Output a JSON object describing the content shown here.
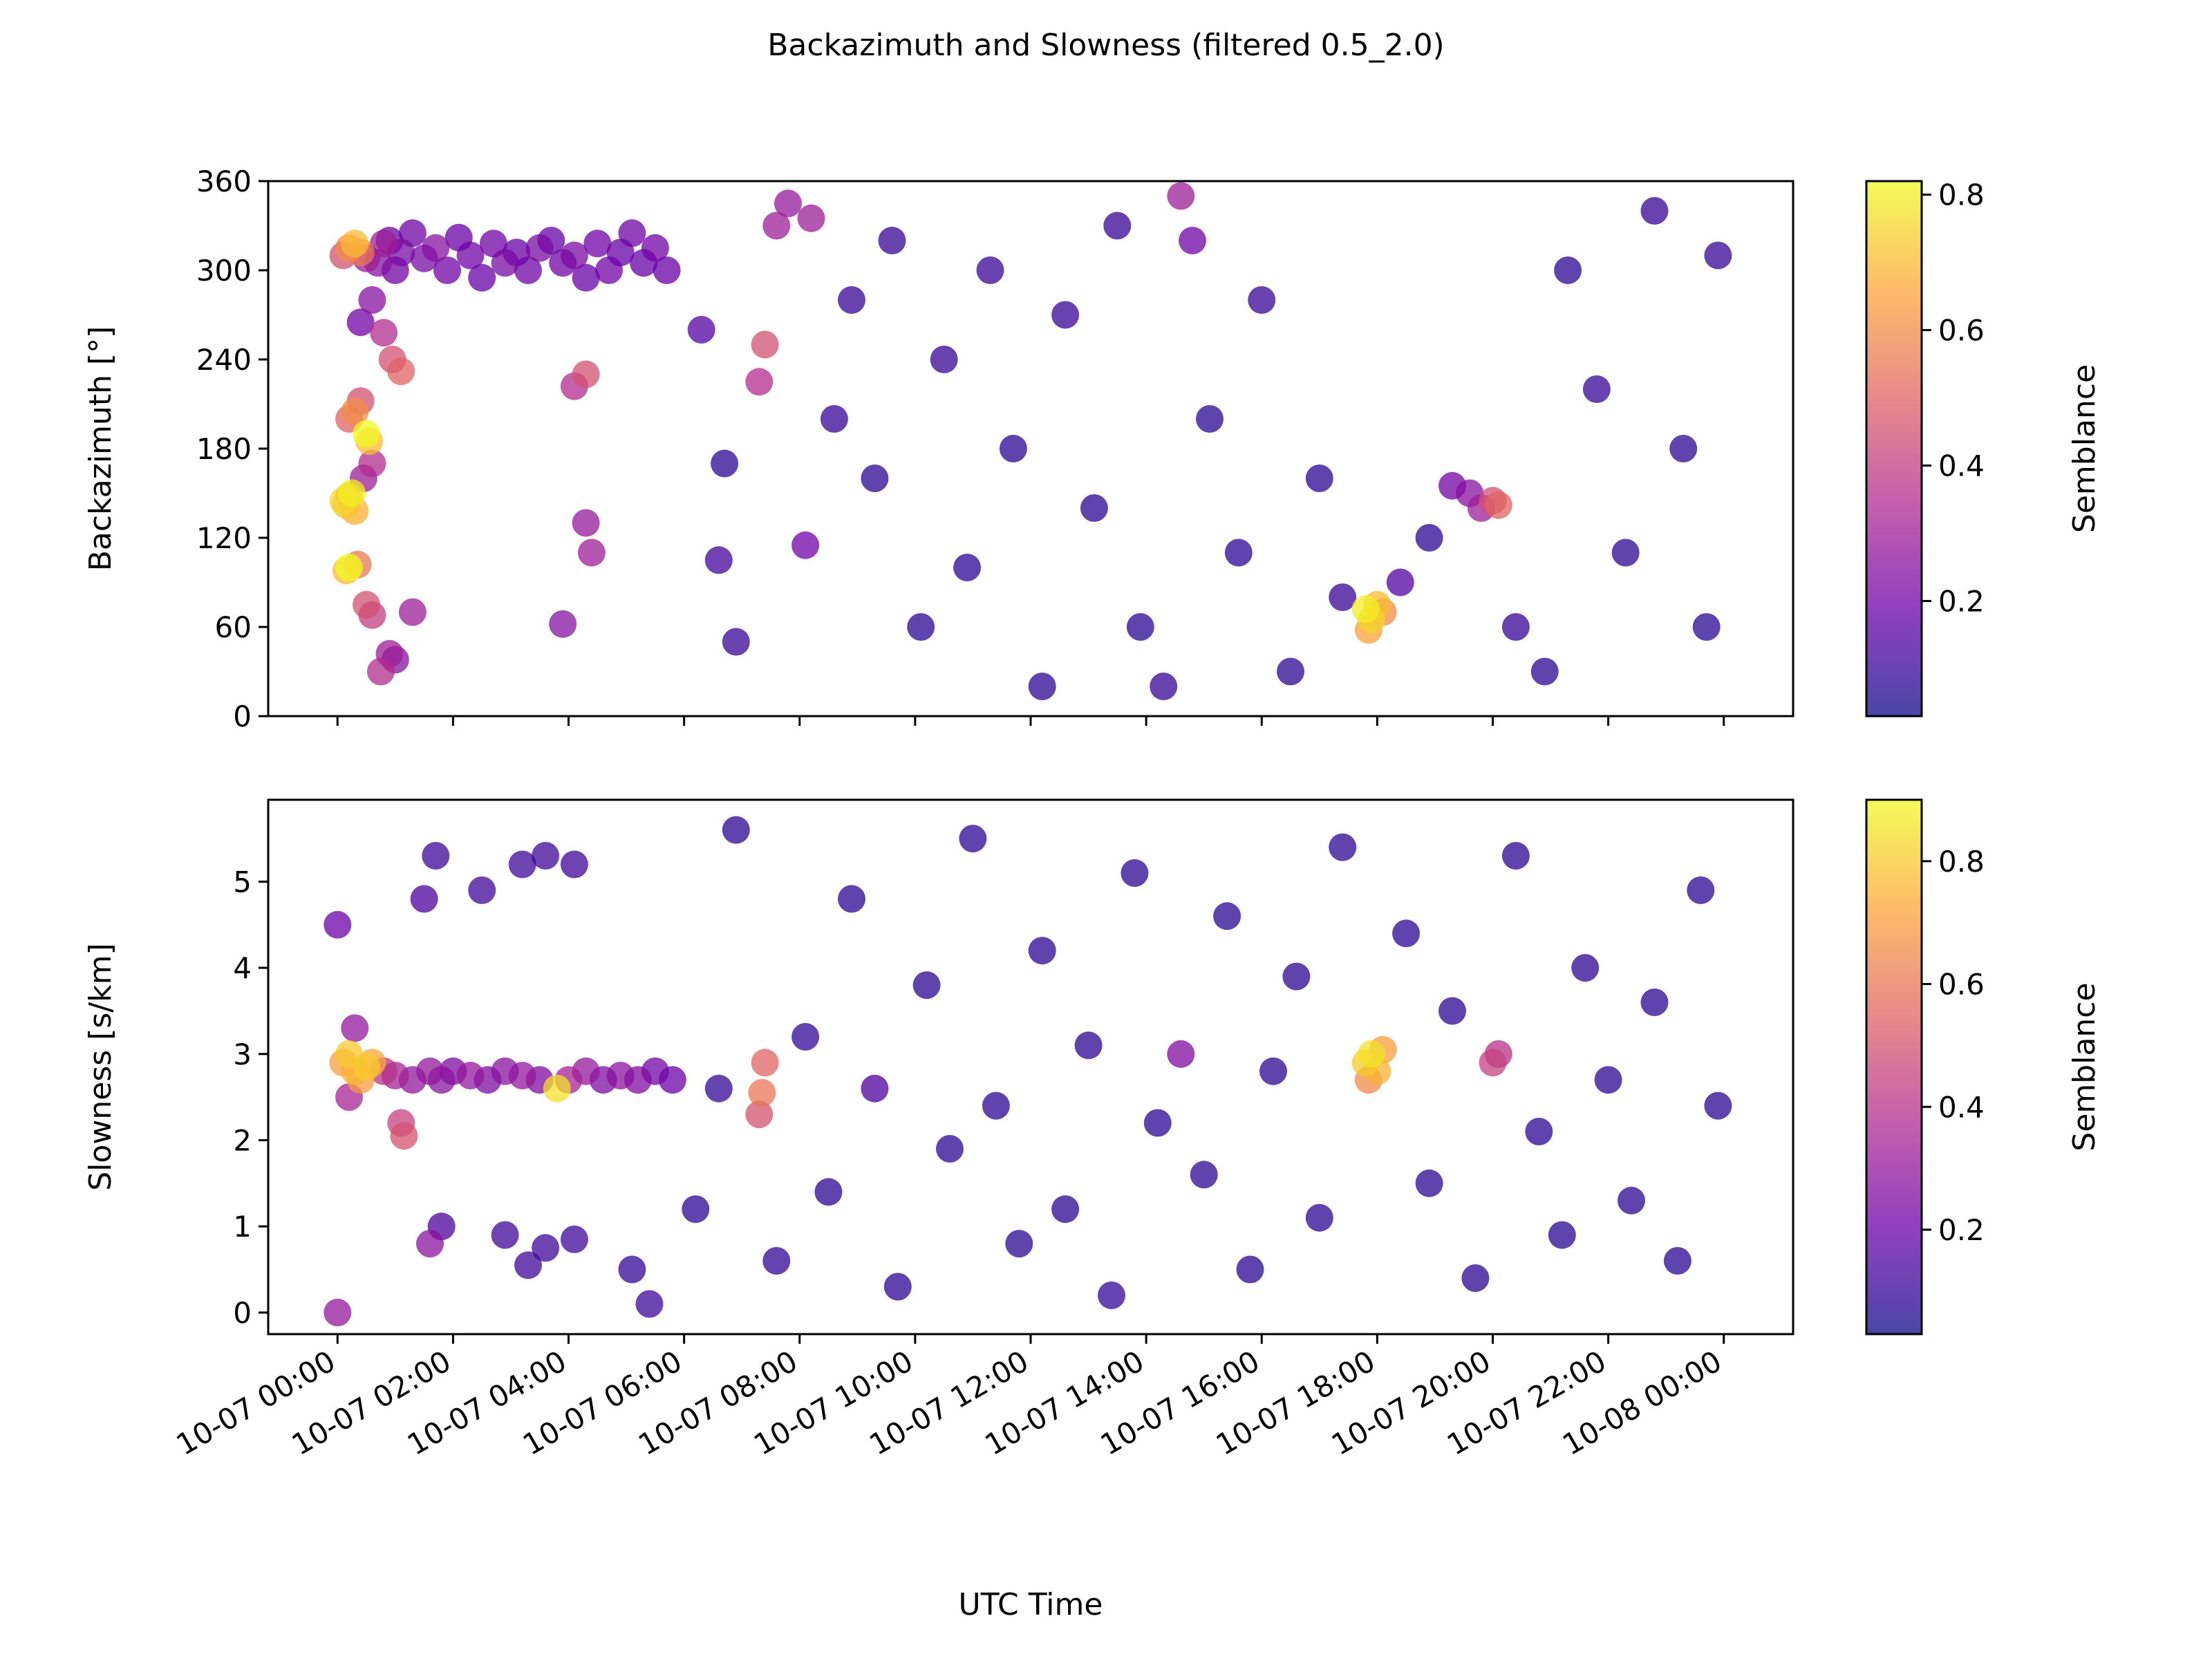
{
  "figure": {
    "title": "Backazimuth and Slowness (filtered 0.5_2.0)",
    "xlabel": "UTC Time",
    "x_tick_labels": [
      "10-07 00:00",
      "10-07 02:00",
      "10-07 04:00",
      "10-07 06:00",
      "10-07 08:00",
      "10-07 10:00",
      "10-07 12:00",
      "10-07 14:00",
      "10-07 16:00",
      "10-07 18:00",
      "10-07 20:00",
      "10-07 22:00",
      "10-08 00:00"
    ]
  },
  "colormap": {
    "name": "plasma",
    "stops": [
      "#0d0887",
      "#6a00a8",
      "#b12a90",
      "#e16462",
      "#fca636",
      "#f0f921"
    ],
    "marker_alpha": 0.75
  },
  "chart_data": [
    {
      "type": "scatter",
      "panel": "backazimuth",
      "ylabel": "Backazimuth [°]",
      "y_ticks": [
        0,
        60,
        120,
        180,
        240,
        300,
        360
      ],
      "ylim": [
        0,
        360
      ],
      "xlim_hours": [
        -1.2,
        25.2
      ],
      "colorbar": {
        "label": "Semblance",
        "ticks": [
          "0.2",
          "0.4",
          "0.6",
          "0.8"
        ],
        "range": [
          0.03,
          0.82
        ]
      },
      "points": [
        [
          0.1,
          145,
          0.75
        ],
        [
          0.2,
          148,
          0.7
        ],
        [
          0.15,
          142,
          0.72
        ],
        [
          0.25,
          150,
          0.8
        ],
        [
          0.3,
          138,
          0.68
        ],
        [
          0.2,
          100,
          0.82
        ],
        [
          0.15,
          98,
          0.7
        ],
        [
          0.35,
          102,
          0.55
        ],
        [
          0.5,
          190,
          0.82
        ],
        [
          0.55,
          185,
          0.7
        ],
        [
          0.3,
          205,
          0.6
        ],
        [
          0.2,
          200,
          0.5
        ],
        [
          0.4,
          212,
          0.45
        ],
        [
          0.6,
          170,
          0.35
        ],
        [
          0.45,
          160,
          0.3
        ],
        [
          0.1,
          310,
          0.45
        ],
        [
          0.2,
          315,
          0.6
        ],
        [
          0.3,
          318,
          0.7
        ],
        [
          0.4,
          312,
          0.55
        ],
        [
          0.5,
          308,
          0.3
        ],
        [
          0.7,
          305,
          0.25
        ],
        [
          0.9,
          320,
          0.2
        ],
        [
          1.0,
          300,
          0.2
        ],
        [
          0.8,
          318,
          0.3
        ],
        [
          1.1,
          312,
          0.22
        ],
        [
          1.3,
          325,
          0.2
        ],
        [
          1.5,
          308,
          0.22
        ],
        [
          1.7,
          315,
          0.25
        ],
        [
          1.9,
          300,
          0.2
        ],
        [
          2.1,
          322,
          0.18
        ],
        [
          2.3,
          310,
          0.2
        ],
        [
          2.5,
          295,
          0.18
        ],
        [
          2.7,
          318,
          0.2
        ],
        [
          2.9,
          305,
          0.22
        ],
        [
          3.1,
          312,
          0.18
        ],
        [
          3.3,
          300,
          0.2
        ],
        [
          3.5,
          315,
          0.22
        ],
        [
          3.7,
          320,
          0.18
        ],
        [
          3.9,
          305,
          0.2
        ],
        [
          4.1,
          310,
          0.22
        ],
        [
          4.3,
          295,
          0.18
        ],
        [
          4.5,
          318,
          0.2
        ],
        [
          4.7,
          300,
          0.2
        ],
        [
          4.9,
          312,
          0.18
        ],
        [
          5.1,
          325,
          0.2
        ],
        [
          5.3,
          305,
          0.18
        ],
        [
          5.5,
          315,
          0.2
        ],
        [
          5.7,
          300,
          0.18
        ],
        [
          0.4,
          265,
          0.2
        ],
        [
          0.8,
          258,
          0.35
        ],
        [
          0.95,
          240,
          0.45
        ],
        [
          1.1,
          232,
          0.5
        ],
        [
          0.6,
          280,
          0.25
        ],
        [
          0.5,
          75,
          0.45
        ],
        [
          0.6,
          68,
          0.4
        ],
        [
          0.9,
          42,
          0.3
        ],
        [
          1.0,
          38,
          0.25
        ],
        [
          0.75,
          30,
          0.35
        ],
        [
          1.3,
          70,
          0.3
        ],
        [
          4.3,
          230,
          0.45
        ],
        [
          4.1,
          222,
          0.35
        ],
        [
          4.4,
          110,
          0.3
        ],
        [
          4.3,
          130,
          0.28
        ],
        [
          3.9,
          62,
          0.25
        ],
        [
          6.3,
          260,
          0.15
        ],
        [
          6.6,
          105,
          0.12
        ],
        [
          6.7,
          170,
          0.08
        ],
        [
          6.9,
          50,
          0.1
        ],
        [
          7.4,
          250,
          0.45
        ],
        [
          7.3,
          225,
          0.35
        ],
        [
          8.1,
          115,
          0.2
        ],
        [
          7.6,
          330,
          0.3
        ],
        [
          7.8,
          345,
          0.28
        ],
        [
          8.2,
          335,
          0.3
        ],
        [
          8.6,
          200,
          0.1
        ],
        [
          8.9,
          280,
          0.1
        ],
        [
          9.3,
          160,
          0.08
        ],
        [
          9.6,
          320,
          0.1
        ],
        [
          10.1,
          60,
          0.08
        ],
        [
          10.5,
          240,
          0.1
        ],
        [
          10.9,
          100,
          0.08
        ],
        [
          11.3,
          300,
          0.1
        ],
        [
          11.7,
          180,
          0.08
        ],
        [
          12.2,
          20,
          0.08
        ],
        [
          12.6,
          270,
          0.1
        ],
        [
          13.1,
          140,
          0.08
        ],
        [
          13.5,
          330,
          0.1
        ],
        [
          13.9,
          60,
          0.08
        ],
        [
          14.3,
          20,
          0.1
        ],
        [
          14.6,
          350,
          0.3
        ],
        [
          14.8,
          320,
          0.2
        ],
        [
          15.1,
          200,
          0.08
        ],
        [
          15.6,
          110,
          0.08
        ],
        [
          16.0,
          280,
          0.1
        ],
        [
          16.5,
          30,
          0.08
        ],
        [
          17.0,
          160,
          0.08
        ],
        [
          17.4,
          80,
          0.1
        ],
        [
          17.8,
          72,
          0.8
        ],
        [
          17.9,
          65,
          0.75
        ],
        [
          18.0,
          75,
          0.7
        ],
        [
          17.85,
          58,
          0.65
        ],
        [
          18.1,
          70,
          0.6
        ],
        [
          18.4,
          90,
          0.15
        ],
        [
          18.9,
          120,
          0.08
        ],
        [
          19.3,
          155,
          0.2
        ],
        [
          19.6,
          150,
          0.25
        ],
        [
          19.8,
          140,
          0.3
        ],
        [
          20.0,
          145,
          0.45
        ],
        [
          20.1,
          142,
          0.5
        ],
        [
          20.4,
          60,
          0.1
        ],
        [
          20.9,
          30,
          0.08
        ],
        [
          21.3,
          300,
          0.08
        ],
        [
          21.8,
          220,
          0.1
        ],
        [
          22.3,
          110,
          0.08
        ],
        [
          22.8,
          340,
          0.1
        ],
        [
          23.3,
          180,
          0.08
        ],
        [
          23.7,
          60,
          0.08
        ],
        [
          23.9,
          310,
          0.1
        ]
      ]
    },
    {
      "type": "scatter",
      "panel": "slowness",
      "ylabel": "Slowness [s/km]",
      "y_ticks": [
        0,
        1,
        2,
        3,
        4,
        5
      ],
      "ylim": [
        -0.25,
        5.95
      ],
      "xlim_hours": [
        -1.2,
        25.2
      ],
      "colorbar": {
        "label": "Semblance",
        "ticks": [
          "0.2",
          "0.4",
          "0.6",
          "0.8"
        ],
        "range": [
          0.03,
          0.9
        ]
      },
      "points": [
        [
          0.0,
          0.0,
          0.3
        ],
        [
          0.0,
          4.5,
          0.2
        ],
        [
          0.1,
          2.9,
          0.7
        ],
        [
          0.2,
          3.0,
          0.8
        ],
        [
          0.3,
          2.8,
          0.75
        ],
        [
          0.4,
          2.7,
          0.7
        ],
        [
          0.5,
          2.85,
          0.8
        ],
        [
          0.6,
          2.9,
          0.72
        ],
        [
          0.2,
          2.5,
          0.35
        ],
        [
          0.3,
          3.3,
          0.3
        ],
        [
          0.8,
          2.8,
          0.4
        ],
        [
          1.0,
          2.75,
          0.35
        ],
        [
          1.1,
          2.2,
          0.45
        ],
        [
          1.15,
          2.05,
          0.5
        ],
        [
          1.3,
          2.7,
          0.3
        ],
        [
          1.6,
          0.8,
          0.28
        ],
        [
          1.6,
          2.8,
          0.3
        ],
        [
          1.8,
          2.7,
          0.28
        ],
        [
          2.0,
          2.8,
          0.25
        ],
        [
          2.3,
          2.75,
          0.3
        ],
        [
          2.6,
          2.7,
          0.25
        ],
        [
          2.9,
          2.8,
          0.28
        ],
        [
          3.2,
          2.75,
          0.3
        ],
        [
          3.5,
          2.7,
          0.25
        ],
        [
          3.8,
          2.6,
          0.85
        ],
        [
          4.0,
          2.7,
          0.35
        ],
        [
          4.3,
          2.8,
          0.3
        ],
        [
          4.6,
          2.7,
          0.25
        ],
        [
          4.9,
          2.75,
          0.28
        ],
        [
          5.2,
          2.7,
          0.25
        ],
        [
          5.5,
          2.8,
          0.22
        ],
        [
          5.8,
          2.7,
          0.2
        ],
        [
          1.5,
          4.8,
          0.15
        ],
        [
          1.7,
          5.3,
          0.12
        ],
        [
          2.5,
          4.9,
          0.12
        ],
        [
          3.2,
          5.2,
          0.12
        ],
        [
          3.6,
          5.3,
          0.12
        ],
        [
          4.1,
          5.2,
          0.12
        ],
        [
          1.8,
          1.0,
          0.15
        ],
        [
          2.9,
          0.9,
          0.12
        ],
        [
          3.3,
          0.55,
          0.12
        ],
        [
          3.6,
          0.75,
          0.12
        ],
        [
          4.1,
          0.85,
          0.12
        ],
        [
          5.1,
          0.5,
          0.1
        ],
        [
          5.4,
          0.1,
          0.12
        ],
        [
          6.2,
          1.2,
          0.08
        ],
        [
          6.6,
          2.6,
          0.1
        ],
        [
          6.9,
          5.6,
          0.08
        ],
        [
          7.3,
          2.3,
          0.5
        ],
        [
          7.35,
          2.55,
          0.6
        ],
        [
          7.4,
          2.9,
          0.55
        ],
        [
          7.6,
          0.6,
          0.1
        ],
        [
          8.1,
          3.2,
          0.1
        ],
        [
          8.5,
          1.4,
          0.08
        ],
        [
          8.9,
          4.8,
          0.08
        ],
        [
          9.3,
          2.6,
          0.15
        ],
        [
          9.7,
          0.3,
          0.08
        ],
        [
          10.2,
          3.8,
          0.08
        ],
        [
          10.6,
          1.9,
          0.08
        ],
        [
          11.0,
          5.5,
          0.08
        ],
        [
          11.4,
          2.4,
          0.08
        ],
        [
          11.8,
          0.8,
          0.08
        ],
        [
          12.2,
          4.2,
          0.08
        ],
        [
          12.6,
          1.2,
          0.08
        ],
        [
          13.0,
          3.1,
          0.08
        ],
        [
          13.4,
          0.2,
          0.1
        ],
        [
          13.8,
          5.1,
          0.08
        ],
        [
          14.2,
          2.2,
          0.08
        ],
        [
          14.6,
          3.0,
          0.25
        ],
        [
          15.0,
          1.6,
          0.08
        ],
        [
          15.4,
          4.6,
          0.08
        ],
        [
          15.8,
          0.5,
          0.08
        ],
        [
          16.2,
          2.8,
          0.08
        ],
        [
          16.6,
          3.9,
          0.08
        ],
        [
          17.0,
          1.1,
          0.08
        ],
        [
          17.4,
          5.4,
          0.08
        ],
        [
          17.8,
          2.9,
          0.8
        ],
        [
          17.9,
          3.0,
          0.85
        ],
        [
          18.0,
          2.8,
          0.75
        ],
        [
          18.1,
          3.05,
          0.7
        ],
        [
          17.85,
          2.7,
          0.65
        ],
        [
          18.5,
          4.4,
          0.08
        ],
        [
          18.9,
          1.5,
          0.08
        ],
        [
          19.3,
          3.5,
          0.08
        ],
        [
          19.7,
          0.4,
          0.08
        ],
        [
          20.0,
          2.9,
          0.45
        ],
        [
          20.1,
          3.0,
          0.4
        ],
        [
          20.4,
          5.3,
          0.08
        ],
        [
          20.8,
          2.1,
          0.08
        ],
        [
          21.2,
          0.9,
          0.08
        ],
        [
          21.6,
          4.0,
          0.08
        ],
        [
          22.0,
          2.7,
          0.08
        ],
        [
          22.4,
          1.3,
          0.08
        ],
        [
          22.8,
          3.6,
          0.08
        ],
        [
          23.2,
          0.6,
          0.08
        ],
        [
          23.6,
          4.9,
          0.08
        ],
        [
          23.9,
          2.4,
          0.08
        ]
      ]
    }
  ]
}
